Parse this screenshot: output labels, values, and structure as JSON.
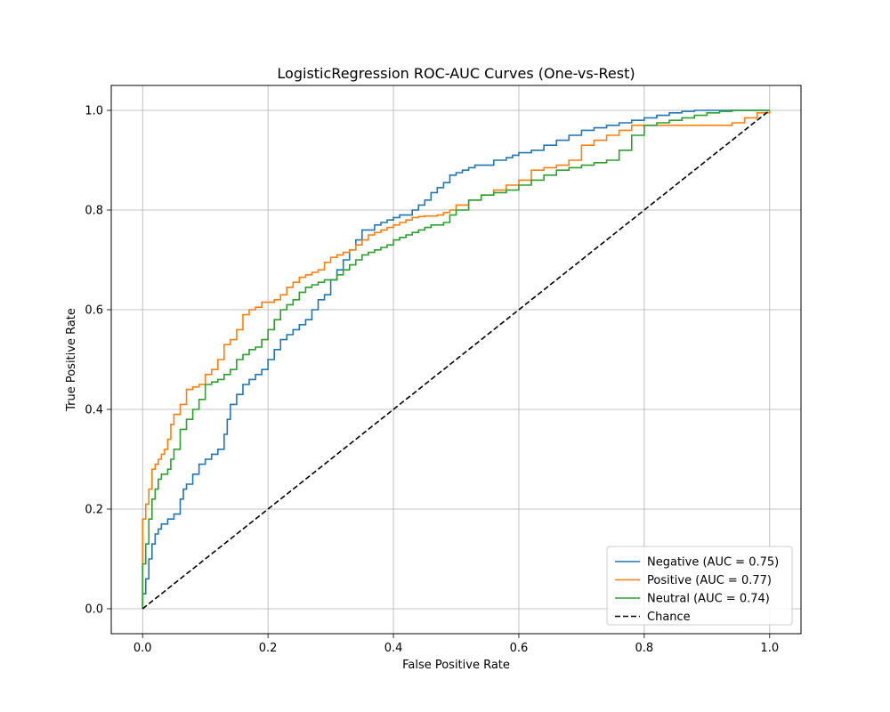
{
  "chart_data": {
    "type": "line",
    "title": "LogisticRegression ROC-AUC Curves (One-vs-Rest)",
    "xlabel": "False Positive Rate",
    "ylabel": "True Positive Rate",
    "xlim": [
      -0.05,
      1.05
    ],
    "ylim": [
      -0.05,
      1.05
    ],
    "xticks": [
      0.0,
      0.2,
      0.4,
      0.6,
      0.8,
      1.0
    ],
    "yticks": [
      0.0,
      0.2,
      0.4,
      0.6,
      0.8,
      1.0
    ],
    "xtick_labels": [
      "0.0",
      "0.2",
      "0.4",
      "0.6",
      "0.8",
      "1.0"
    ],
    "ytick_labels": [
      "0.0",
      "0.2",
      "0.4",
      "0.6",
      "0.8",
      "1.0"
    ],
    "grid": true,
    "legend_position": "bottom-right",
    "series": [
      {
        "name": "Negative (AUC = 0.75)",
        "color": "#1f77b4",
        "dash": "solid",
        "x": [
          0.0,
          0.0,
          0.005,
          0.01,
          0.015,
          0.02,
          0.025,
          0.03,
          0.04,
          0.05,
          0.06,
          0.065,
          0.07,
          0.08,
          0.09,
          0.1,
          0.11,
          0.12,
          0.13,
          0.135,
          0.14,
          0.15,
          0.16,
          0.17,
          0.18,
          0.19,
          0.2,
          0.21,
          0.22,
          0.23,
          0.24,
          0.25,
          0.26,
          0.27,
          0.28,
          0.29,
          0.3,
          0.31,
          0.32,
          0.33,
          0.34,
          0.35,
          0.36,
          0.37,
          0.38,
          0.39,
          0.4,
          0.41,
          0.42,
          0.43,
          0.44,
          0.45,
          0.46,
          0.47,
          0.48,
          0.49,
          0.5,
          0.51,
          0.52,
          0.53,
          0.54,
          0.55,
          0.56,
          0.57,
          0.58,
          0.59,
          0.6,
          0.62,
          0.64,
          0.66,
          0.68,
          0.7,
          0.72,
          0.74,
          0.76,
          0.78,
          0.8,
          0.82,
          0.84,
          0.86,
          0.88,
          0.9,
          0.92,
          0.94,
          0.96,
          0.98,
          1.0
        ],
        "y": [
          0.0,
          0.03,
          0.06,
          0.1,
          0.13,
          0.15,
          0.16,
          0.17,
          0.18,
          0.19,
          0.22,
          0.24,
          0.25,
          0.27,
          0.29,
          0.3,
          0.31,
          0.32,
          0.35,
          0.38,
          0.41,
          0.43,
          0.45,
          0.46,
          0.47,
          0.48,
          0.5,
          0.52,
          0.54,
          0.55,
          0.56,
          0.57,
          0.58,
          0.6,
          0.62,
          0.63,
          0.66,
          0.68,
          0.7,
          0.72,
          0.74,
          0.76,
          0.76,
          0.77,
          0.775,
          0.78,
          0.785,
          0.79,
          0.79,
          0.8,
          0.81,
          0.82,
          0.835,
          0.845,
          0.855,
          0.87,
          0.875,
          0.88,
          0.885,
          0.89,
          0.89,
          0.89,
          0.9,
          0.9,
          0.905,
          0.91,
          0.915,
          0.92,
          0.93,
          0.94,
          0.95,
          0.96,
          0.965,
          0.97,
          0.975,
          0.98,
          0.985,
          0.99,
          0.995,
          0.998,
          1.0,
          1.0,
          1.0,
          1.0,
          1.0,
          1.0,
          1.0
        ]
      },
      {
        "name": "Positive (AUC = 0.77)",
        "color": "#ff7f0e",
        "dash": "solid",
        "x": [
          0.0,
          0.0,
          0.005,
          0.01,
          0.015,
          0.02,
          0.025,
          0.03,
          0.035,
          0.04,
          0.045,
          0.05,
          0.06,
          0.07,
          0.08,
          0.09,
          0.1,
          0.11,
          0.12,
          0.13,
          0.14,
          0.15,
          0.16,
          0.17,
          0.18,
          0.19,
          0.2,
          0.21,
          0.22,
          0.23,
          0.24,
          0.25,
          0.26,
          0.27,
          0.28,
          0.29,
          0.3,
          0.31,
          0.32,
          0.33,
          0.34,
          0.35,
          0.36,
          0.37,
          0.38,
          0.39,
          0.4,
          0.41,
          0.42,
          0.43,
          0.44,
          0.45,
          0.46,
          0.47,
          0.48,
          0.49,
          0.5,
          0.52,
          0.54,
          0.56,
          0.58,
          0.6,
          0.62,
          0.64,
          0.66,
          0.68,
          0.7,
          0.72,
          0.74,
          0.76,
          0.78,
          0.8,
          0.82,
          0.84,
          0.86,
          0.88,
          0.9,
          0.92,
          0.94,
          0.96,
          0.98,
          1.0
        ],
        "y": [
          0.0,
          0.18,
          0.21,
          0.24,
          0.28,
          0.29,
          0.3,
          0.31,
          0.32,
          0.34,
          0.37,
          0.39,
          0.41,
          0.44,
          0.445,
          0.45,
          0.47,
          0.48,
          0.5,
          0.53,
          0.54,
          0.56,
          0.59,
          0.6,
          0.605,
          0.615,
          0.615,
          0.62,
          0.63,
          0.645,
          0.655,
          0.665,
          0.67,
          0.675,
          0.68,
          0.695,
          0.705,
          0.71,
          0.715,
          0.72,
          0.73,
          0.74,
          0.75,
          0.755,
          0.76,
          0.765,
          0.77,
          0.775,
          0.78,
          0.785,
          0.787,
          0.788,
          0.788,
          0.79,
          0.795,
          0.8,
          0.81,
          0.82,
          0.83,
          0.84,
          0.85,
          0.86,
          0.88,
          0.885,
          0.89,
          0.9,
          0.93,
          0.94,
          0.95,
          0.96,
          0.97,
          0.97,
          0.97,
          0.97,
          0.97,
          0.97,
          0.97,
          0.97,
          0.975,
          0.985,
          0.995,
          1.0
        ]
      },
      {
        "name": "Neutral (AUC = 0.74)",
        "color": "#2ca02c",
        "dash": "solid",
        "x": [
          0.0,
          0.0,
          0.005,
          0.01,
          0.015,
          0.02,
          0.025,
          0.03,
          0.04,
          0.045,
          0.05,
          0.06,
          0.07,
          0.08,
          0.09,
          0.1,
          0.11,
          0.12,
          0.13,
          0.14,
          0.15,
          0.16,
          0.17,
          0.18,
          0.19,
          0.2,
          0.21,
          0.22,
          0.23,
          0.24,
          0.25,
          0.26,
          0.27,
          0.28,
          0.29,
          0.3,
          0.31,
          0.32,
          0.33,
          0.34,
          0.35,
          0.36,
          0.37,
          0.38,
          0.39,
          0.4,
          0.41,
          0.42,
          0.43,
          0.44,
          0.45,
          0.46,
          0.47,
          0.48,
          0.49,
          0.5,
          0.52,
          0.54,
          0.56,
          0.58,
          0.6,
          0.62,
          0.64,
          0.66,
          0.68,
          0.7,
          0.72,
          0.74,
          0.76,
          0.78,
          0.8,
          0.82,
          0.84,
          0.86,
          0.88,
          0.9,
          0.92,
          0.94,
          0.96,
          0.98,
          1.0
        ],
        "y": [
          0.0,
          0.09,
          0.13,
          0.18,
          0.22,
          0.24,
          0.26,
          0.27,
          0.28,
          0.3,
          0.32,
          0.36,
          0.38,
          0.4,
          0.42,
          0.45,
          0.455,
          0.46,
          0.47,
          0.48,
          0.5,
          0.51,
          0.52,
          0.525,
          0.54,
          0.56,
          0.58,
          0.6,
          0.61,
          0.62,
          0.635,
          0.645,
          0.65,
          0.655,
          0.66,
          0.66,
          0.67,
          0.68,
          0.69,
          0.7,
          0.71,
          0.715,
          0.72,
          0.725,
          0.73,
          0.74,
          0.745,
          0.75,
          0.755,
          0.76,
          0.765,
          0.77,
          0.77,
          0.775,
          0.79,
          0.8,
          0.82,
          0.83,
          0.835,
          0.84,
          0.85,
          0.86,
          0.87,
          0.88,
          0.885,
          0.89,
          0.895,
          0.9,
          0.92,
          0.95,
          0.97,
          0.975,
          0.98,
          0.985,
          0.99,
          0.995,
          0.998,
          1.0,
          1.0,
          1.0,
          1.0
        ]
      },
      {
        "name": "Chance",
        "color": "#000000",
        "dash": "dashed",
        "x": [
          0.0,
          1.0
        ],
        "y": [
          0.0,
          1.0
        ]
      }
    ]
  }
}
